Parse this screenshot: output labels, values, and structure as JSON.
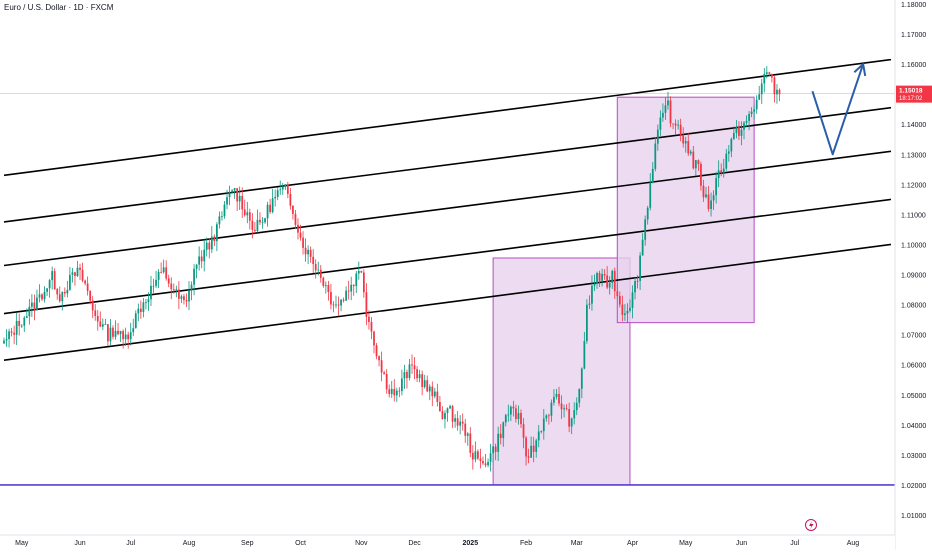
{
  "chart_data": {
    "type": "candlestick",
    "title": "Euro / U.S. Dollar · 1D · FXCM",
    "ylim": [
      1.005,
      1.18
    ],
    "y_ticks": [
      "1.18000",
      "1.17000",
      "1.16000",
      "1.15000",
      "1.14000",
      "1.13000",
      "1.12000",
      "1.11000",
      "1.10000",
      "1.09000",
      "1.08000",
      "1.07000",
      "1.06000",
      "1.05000",
      "1.04000",
      "1.03000",
      "1.02000",
      "1.01000"
    ],
    "y_tick_values": [
      1.18,
      1.17,
      1.16,
      1.15,
      1.14,
      1.13,
      1.12,
      1.11,
      1.1,
      1.09,
      1.08,
      1.07,
      1.06,
      1.05,
      1.04,
      1.03,
      1.02,
      1.01
    ],
    "x_ticks": [
      {
        "label": "May",
        "t": 7
      },
      {
        "label": "Jun",
        "t": 30
      },
      {
        "label": "Jul",
        "t": 50
      },
      {
        "label": "Aug",
        "t": 73
      },
      {
        "label": "Sep",
        "t": 96
      },
      {
        "label": "Oct",
        "t": 117
      },
      {
        "label": "Nov",
        "t": 141
      },
      {
        "label": "Dec",
        "t": 162
      },
      {
        "label": "2025",
        "t": 184
      },
      {
        "label": "Feb",
        "t": 206
      },
      {
        "label": "Mar",
        "t": 226
      },
      {
        "label": "Apr",
        "t": 248
      },
      {
        "label": "May",
        "t": 269
      },
      {
        "label": "Jun",
        "t": 291
      },
      {
        "label": "Jul",
        "t": 312
      },
      {
        "label": "Aug",
        "t": 335
      }
    ],
    "x_range": [
      0,
      350
    ],
    "last_price": {
      "value": 1.15018,
      "label": "1.15018",
      "countdown": "18:17:02",
      "color": "#f23645"
    },
    "up_color": "#089981",
    "down_color": "#f23645",
    "keypoints": [
      [
        0,
        1.067
      ],
      [
        6,
        1.074
      ],
      [
        12,
        1.08
      ],
      [
        16,
        1.085
      ],
      [
        19,
        1.089
      ],
      [
        22,
        1.083
      ],
      [
        26,
        1.088
      ],
      [
        29,
        1.091
      ],
      [
        32,
        1.087
      ],
      [
        35,
        1.078
      ],
      [
        38,
        1.074
      ],
      [
        41,
        1.07
      ],
      [
        44,
        1.072
      ],
      [
        47,
        1.068
      ],
      [
        50,
        1.072
      ],
      [
        53,
        1.078
      ],
      [
        56,
        1.082
      ],
      [
        60,
        1.088
      ],
      [
        63,
        1.091
      ],
      [
        66,
        1.086
      ],
      [
        69,
        1.082
      ],
      [
        72,
        1.08
      ],
      [
        75,
        1.092
      ],
      [
        78,
        1.096
      ],
      [
        81,
        1.1
      ],
      [
        84,
        1.105
      ],
      [
        87,
        1.112
      ],
      [
        90,
        1.119
      ],
      [
        93,
        1.115
      ],
      [
        96,
        1.11
      ],
      [
        99,
        1.105
      ],
      [
        102,
        1.108
      ],
      [
        105,
        1.113
      ],
      [
        108,
        1.117
      ],
      [
        111,
        1.118
      ],
      [
        114,
        1.112
      ],
      [
        117,
        1.102
      ],
      [
        120,
        1.097
      ],
      [
        123,
        1.093
      ],
      [
        126,
        1.088
      ],
      [
        129,
        1.082
      ],
      [
        132,
        1.08
      ],
      [
        135,
        1.084
      ],
      [
        138,
        1.088
      ],
      [
        141,
        1.092
      ],
      [
        143,
        1.078
      ],
      [
        146,
        1.068
      ],
      [
        149,
        1.058
      ],
      [
        152,
        1.052
      ],
      [
        155,
        1.05
      ],
      [
        158,
        1.056
      ],
      [
        161,
        1.059
      ],
      [
        164,
        1.056
      ],
      [
        167,
        1.052
      ],
      [
        170,
        1.049
      ],
      [
        173,
        1.044
      ],
      [
        176,
        1.044
      ],
      [
        179,
        1.041
      ],
      [
        182,
        1.038
      ],
      [
        185,
        1.03
      ],
      [
        188,
        1.027
      ],
      [
        191,
        1.029
      ],
      [
        194,
        1.033
      ],
      [
        197,
        1.04
      ],
      [
        200,
        1.046
      ],
      [
        203,
        1.042
      ],
      [
        206,
        1.03
      ],
      [
        209,
        1.032
      ],
      [
        212,
        1.04
      ],
      [
        215,
        1.045
      ],
      [
        218,
        1.049
      ],
      [
        221,
        1.045
      ],
      [
        224,
        1.04
      ],
      [
        226,
        1.047
      ],
      [
        228,
        1.059
      ],
      [
        230,
        1.078
      ],
      [
        232,
        1.085
      ],
      [
        234,
        1.09
      ],
      [
        236,
        1.088
      ],
      [
        238,
        1.087
      ],
      [
        240,
        1.09
      ],
      [
        242,
        1.083
      ],
      [
        244,
        1.078
      ],
      [
        246,
        1.079
      ],
      [
        248,
        1.083
      ],
      [
        250,
        1.09
      ],
      [
        252,
        1.102
      ],
      [
        254,
        1.114
      ],
      [
        256,
        1.127
      ],
      [
        258,
        1.138
      ],
      [
        260,
        1.142
      ],
      [
        262,
        1.147
      ],
      [
        264,
        1.138
      ],
      [
        266,
        1.14
      ],
      [
        268,
        1.135
      ],
      [
        270,
        1.132
      ],
      [
        272,
        1.127
      ],
      [
        274,
        1.125
      ],
      [
        276,
        1.117
      ],
      [
        278,
        1.113
      ],
      [
        280,
        1.118
      ],
      [
        282,
        1.124
      ],
      [
        284,
        1.127
      ],
      [
        286,
        1.132
      ],
      [
        288,
        1.136
      ],
      [
        290,
        1.138
      ],
      [
        292,
        1.14
      ],
      [
        294,
        1.142
      ],
      [
        296,
        1.145
      ],
      [
        298,
        1.15
      ],
      [
        300,
        1.158
      ],
      [
        302,
        1.156
      ],
      [
        304,
        1.151
      ],
      [
        306,
        1.15
      ]
    ],
    "trend_channels": [
      {
        "start": [
          0,
          1.123
        ],
        "end": [
          350,
          1.1615
        ],
        "color": "#000000"
      },
      {
        "start": [
          0,
          1.1075
        ],
        "end": [
          350,
          1.1455
        ],
        "color": "#000000"
      },
      {
        "start": [
          0,
          1.093
        ],
        "end": [
          350,
          1.131
        ],
        "color": "#000000"
      },
      {
        "start": [
          0,
          1.077
        ],
        "end": [
          350,
          1.115
        ],
        "color": "#000000"
      },
      {
        "start": [
          0,
          1.0615
        ],
        "end": [
          350,
          1.1
        ],
        "color": "#000000"
      }
    ],
    "support_line": {
      "value": 1.02,
      "color": "#5b3fd1"
    },
    "zones": [
      {
        "t0": 193,
        "t1": 247,
        "y0": 1.02,
        "y1": 1.0955,
        "fill": "#e7d2ee",
        "stroke": "#b64ec4"
      },
      {
        "t0": 242,
        "t1": 296,
        "y0": 1.074,
        "y1": 1.149,
        "fill": "#e7d2ee",
        "stroke": "#b64ec4"
      }
    ],
    "projection_path": {
      "points": [
        [
          319,
          1.151
        ],
        [
          327,
          1.13
        ],
        [
          339,
          1.16
        ]
      ],
      "color": "#2a5ea8"
    }
  }
}
